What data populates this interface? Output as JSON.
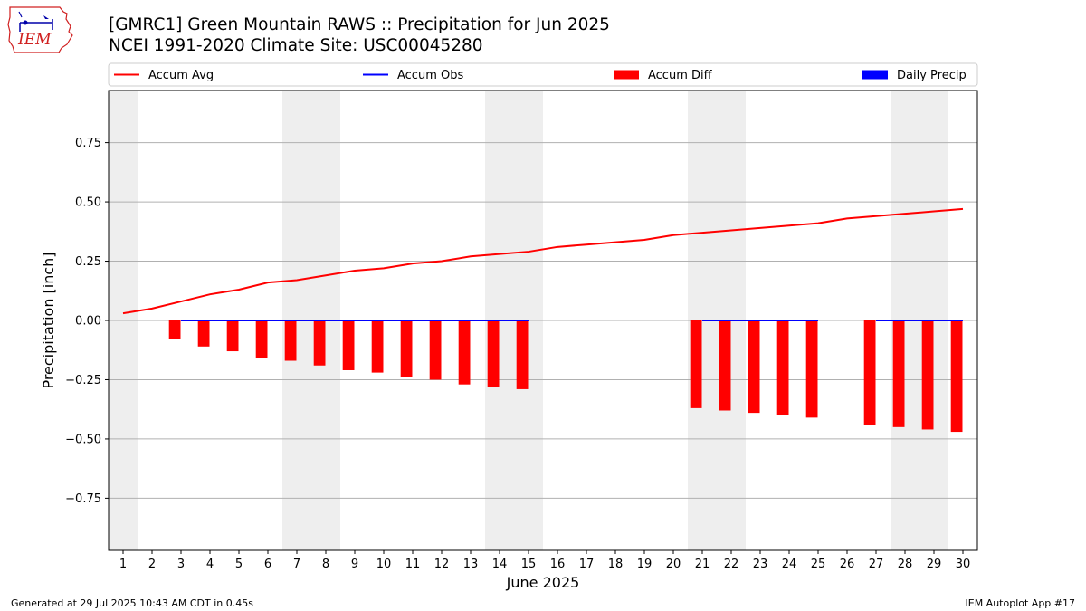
{
  "header": {
    "title_line1": "[GMRC1] Green Mountain RAWS :: Precipitation for Jun 2025",
    "title_line2": "NCEI 1991-2020 Climate Site: USC00045280"
  },
  "logo": {
    "text": "IEM",
    "icon": "iem-iowa-logo-icon"
  },
  "footer": {
    "generated": "Generated at 29 Jul 2025 10:43 AM CDT in 0.45s",
    "app": "IEM Autoplot App #17"
  },
  "colors": {
    "accum_avg": "#ff0000",
    "accum_obs": "#0000ff",
    "accum_diff": "#ff0000",
    "daily_precip": "#0000ff",
    "weekend_shade": "#eeeeee",
    "grid": "#b0b0b0"
  },
  "chart_data": {
    "type": "bar",
    "xlabel": "June 2025",
    "ylabel": "Precipitation [inch]",
    "x": [
      1,
      2,
      3,
      4,
      5,
      6,
      7,
      8,
      9,
      10,
      11,
      12,
      13,
      14,
      15,
      16,
      17,
      18,
      19,
      20,
      21,
      22,
      23,
      24,
      25,
      26,
      27,
      28,
      29,
      30
    ],
    "xlim": [
      0.5,
      30.5
    ],
    "ylim": [
      -0.97,
      0.97
    ],
    "yticks": [
      -0.75,
      -0.5,
      -0.25,
      0.0,
      0.25,
      0.5,
      0.75
    ],
    "ytick_labels": [
      "−0.75",
      "−0.50",
      "−0.25",
      "0.00",
      "0.25",
      "0.50",
      "0.75"
    ],
    "grid": "horizontal",
    "legend_position": "top, above plot",
    "weekend_shaded_days": [
      1,
      7,
      8,
      14,
      15,
      21,
      22,
      28,
      29
    ],
    "legend": [
      "Accum Avg",
      "Accum Obs",
      "Accum Diff",
      "Daily Precip"
    ],
    "series": [
      {
        "name": "Accum Avg",
        "kind": "line",
        "x": [
          1,
          2,
          3,
          4,
          5,
          6,
          7,
          8,
          9,
          10,
          11,
          12,
          13,
          14,
          15,
          16,
          17,
          18,
          19,
          20,
          21,
          22,
          23,
          24,
          25,
          26,
          27,
          28,
          29,
          30
        ],
        "values": [
          0.03,
          0.05,
          0.08,
          0.11,
          0.13,
          0.16,
          0.17,
          0.19,
          0.21,
          0.22,
          0.24,
          0.25,
          0.27,
          0.28,
          0.29,
          0.31,
          0.32,
          0.33,
          0.34,
          0.36,
          0.37,
          0.38,
          0.39,
          0.4,
          0.41,
          0.43,
          0.44,
          0.45,
          0.46,
          0.47
        ]
      },
      {
        "name": "Accum Obs",
        "kind": "line",
        "segments": [
          {
            "x": [
              3,
              4,
              5,
              6,
              7,
              8,
              9,
              10,
              11,
              12,
              13,
              14,
              15
            ],
            "values": [
              0,
              0,
              0,
              0,
              0,
              0,
              0,
              0,
              0,
              0,
              0,
              0,
              0
            ]
          },
          {
            "x": [
              21,
              22,
              23,
              24,
              25
            ],
            "values": [
              0,
              0,
              0,
              0,
              0
            ]
          },
          {
            "x": [
              27,
              28,
              29,
              30
            ],
            "values": [
              0,
              0,
              0,
              0
            ]
          }
        ]
      },
      {
        "name": "Accum Diff",
        "kind": "bar",
        "x": [
          3,
          4,
          5,
          6,
          7,
          8,
          9,
          10,
          11,
          12,
          13,
          14,
          15,
          21,
          22,
          23,
          24,
          25,
          27,
          28,
          29,
          30
        ],
        "values": [
          -0.08,
          -0.11,
          -0.13,
          -0.16,
          -0.17,
          -0.19,
          -0.21,
          -0.22,
          -0.24,
          -0.25,
          -0.27,
          -0.28,
          -0.29,
          -0.37,
          -0.38,
          -0.39,
          -0.4,
          -0.41,
          -0.44,
          -0.45,
          -0.46,
          -0.47
        ]
      },
      {
        "name": "Daily Precip",
        "kind": "bar",
        "x": [],
        "values": []
      }
    ]
  }
}
